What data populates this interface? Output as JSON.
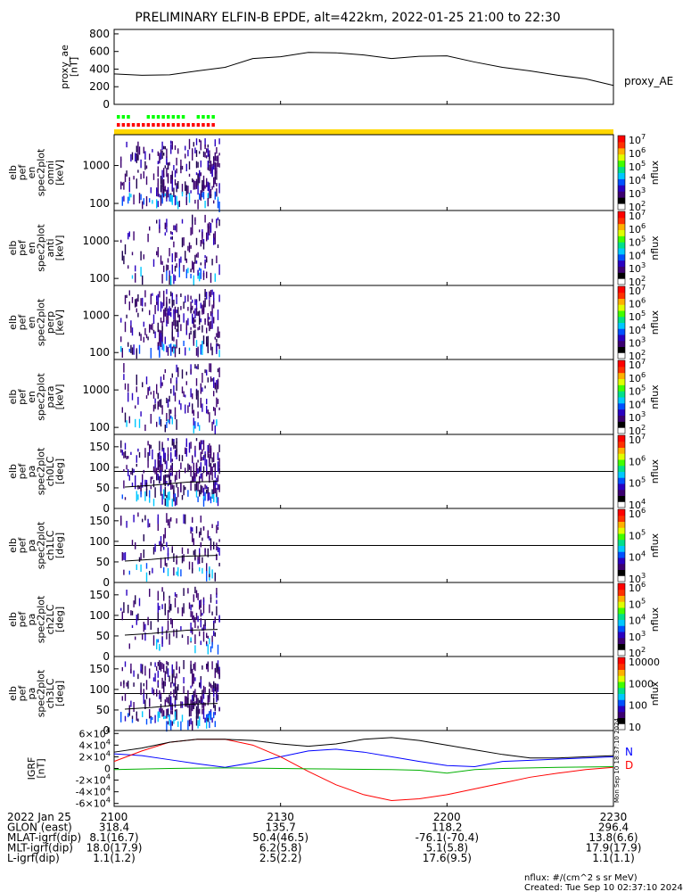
{
  "title": "PRELIMINARY ELFIN-B EPDE, alt=422km, 2022-01-25 21:00 to 22:30",
  "chart_data": [
    {
      "type": "line",
      "panel": "proxy_ae",
      "ylabel_lines": [
        "proxy_ae",
        "[nT]"
      ],
      "ylim": [
        0,
        850
      ],
      "yticks": [
        0,
        200,
        400,
        600,
        800
      ],
      "legend": "proxy_AE",
      "x_minutes": [
        0,
        5,
        10,
        15,
        20,
        25,
        30,
        35,
        40,
        45,
        50,
        55,
        60,
        65,
        70,
        75,
        80,
        85,
        90
      ],
      "values": [
        345,
        330,
        335,
        380,
        420,
        520,
        540,
        590,
        585,
        560,
        520,
        545,
        550,
        480,
        420,
        380,
        330,
        290,
        215
      ]
    },
    {
      "type": "heatmap",
      "panel": "omni",
      "ylabel_lines": [
        "elb",
        "pef",
        "en",
        "spec2plot",
        "omni",
        "[keV]"
      ],
      "yscale": "log",
      "yticks": [
        "100",
        "1000"
      ],
      "colorbar": {
        "label": "nflux",
        "scale": "log",
        "ticks": [
          "10^2",
          "10^3",
          "10^4",
          "10^5",
          "10^6",
          "10^7"
        ]
      }
    },
    {
      "type": "heatmap",
      "panel": "anti",
      "ylabel_lines": [
        "elb",
        "pef",
        "en",
        "spec2plot",
        "anti",
        "[keV]"
      ],
      "yscale": "log",
      "yticks": [
        "100",
        "1000"
      ],
      "colorbar": {
        "label": "nflux",
        "scale": "log",
        "ticks": [
          "10^2",
          "10^3",
          "10^4",
          "10^5",
          "10^6",
          "10^7"
        ]
      }
    },
    {
      "type": "heatmap",
      "panel": "perp",
      "ylabel_lines": [
        "elb",
        "pef",
        "en",
        "spec2plot",
        "perp",
        "[keV]"
      ],
      "yscale": "log",
      "yticks": [
        "100",
        "1000"
      ],
      "colorbar": {
        "label": "nflux",
        "scale": "log",
        "ticks": [
          "10^2",
          "10^3",
          "10^4",
          "10^5",
          "10^6",
          "10^7"
        ]
      }
    },
    {
      "type": "heatmap",
      "panel": "para",
      "ylabel_lines": [
        "elb",
        "pef",
        "en",
        "spec2plot",
        "para",
        "[keV]"
      ],
      "yscale": "log",
      "yticks": [
        "100",
        "1000"
      ],
      "colorbar": {
        "label": "nflux",
        "scale": "log",
        "ticks": [
          "10^2",
          "10^3",
          "10^4",
          "10^5",
          "10^6",
          "10^7"
        ]
      }
    },
    {
      "type": "heatmap",
      "panel": "ch0LC",
      "ylabel_lines": [
        "elb",
        "pef",
        "pa",
        "spec2plot",
        "ch0LC",
        "[deg]"
      ],
      "ylim": [
        0,
        180
      ],
      "yticks": [
        0,
        50,
        100,
        150
      ],
      "colorbar": {
        "label": "nflux",
        "scale": "log",
        "ticks": [
          "10^4",
          "10^5",
          "10^6",
          "10^7"
        ]
      }
    },
    {
      "type": "heatmap",
      "panel": "ch1LC",
      "ylabel_lines": [
        "elb",
        "pef",
        "pa",
        "spec2plot",
        "ch1LC",
        "[deg]"
      ],
      "ylim": [
        0,
        180
      ],
      "yticks": [
        0,
        50,
        100,
        150
      ],
      "colorbar": {
        "label": "nflux",
        "scale": "log",
        "ticks": [
          "10^3",
          "10^4",
          "10^5",
          "10^6"
        ]
      }
    },
    {
      "type": "heatmap",
      "panel": "ch2LC",
      "ylabel_lines": [
        "elb",
        "pef",
        "pa",
        "spec2plot",
        "ch2LC",
        "[deg]"
      ],
      "ylim": [
        0,
        180
      ],
      "yticks": [
        0,
        50,
        100,
        150
      ],
      "colorbar": {
        "label": "nflux",
        "scale": "log",
        "ticks": [
          "10^2",
          "10^3",
          "10^4",
          "10^5",
          "10^6"
        ]
      }
    },
    {
      "type": "heatmap",
      "panel": "ch3LC",
      "ylabel_lines": [
        "elb",
        "pef",
        "pa",
        "spec2plot",
        "ch3LC",
        "[deg]"
      ],
      "ylim": [
        0,
        180
      ],
      "yticks": [
        0,
        50,
        100,
        150
      ],
      "colorbar": {
        "label": "nflux",
        "scale": "log",
        "ticks": [
          "10",
          "100",
          "1000",
          "10000"
        ]
      }
    },
    {
      "type": "line",
      "panel": "IGRF",
      "ylabel_lines": [
        "IGRF",
        "[nT]"
      ],
      "ylim": [
        -65000,
        65000
      ],
      "yticks": [
        "-6x10^4",
        "-4x10^4",
        "-2x10^4",
        "0",
        "2x10^4",
        "4x10^4",
        "6x10^4"
      ],
      "x_minutes": [
        0,
        5,
        10,
        15,
        20,
        25,
        30,
        35,
        40,
        45,
        50,
        55,
        60,
        65,
        70,
        75,
        80,
        85,
        90
      ],
      "series": [
        {
          "name": "N",
          "color": "#0000ff",
          "values": [
            25000,
            22000,
            15000,
            8000,
            2000,
            10000,
            20000,
            30000,
            33000,
            28000,
            20000,
            12000,
            5000,
            3000,
            12000,
            14000,
            16000,
            18000,
            20000
          ]
        },
        {
          "name": "D",
          "color": "#ff0000",
          "values": [
            12000,
            30000,
            45000,
            50000,
            50000,
            40000,
            20000,
            -5000,
            -28000,
            -45000,
            -55000,
            -52000,
            -45000,
            -35000,
            -25000,
            -15000,
            -8000,
            -2000,
            2000
          ]
        },
        {
          "name": "",
          "color": "#00b000",
          "values": [
            -2000,
            -1000,
            0,
            500,
            1000,
            500,
            0,
            -500,
            -1000,
            -1500,
            -2000,
            -3000,
            -8000,
            -2000,
            0,
            1000,
            2000,
            2500,
            3000
          ]
        },
        {
          "name": "",
          "color": "#000000",
          "values": [
            28000,
            35000,
            45000,
            50000,
            50000,
            48000,
            42000,
            38000,
            42000,
            50000,
            53000,
            48000,
            40000,
            32000,
            24000,
            18000,
            18000,
            20000,
            22000
          ]
        }
      ],
      "side_text": "Mon Sep 10 18:37:10 2024"
    }
  ],
  "x_axis": {
    "ticks": [
      "2100",
      "2130",
      "2200",
      "2230"
    ],
    "rows": [
      {
        "label": "2022 Jan 25",
        "values": [
          "2100",
          "2130",
          "2200",
          "2230"
        ]
      },
      {
        "label": "GLON (east)",
        "values": [
          "318.4",
          "135.7",
          "118.2",
          "296.4"
        ]
      },
      {
        "label": "MLAT-igrf(dip)",
        "values": [
          "8.1(16.7)",
          "50.4(46.5)",
          "-76.1(-70.4)",
          "13.8(6.6)"
        ]
      },
      {
        "label": "MLT-igrf(dip)",
        "values": [
          "18.0(17.9)",
          "6.2(5.8)",
          "5.1(5.8)",
          "17.9(17.9)"
        ]
      },
      {
        "label": "L-igrf(dip)",
        "values": [
          "1.1(1.2)",
          "2.5(2.2)",
          "17.6(9.5)",
          "1.1(1.1)"
        ]
      }
    ]
  },
  "footer": {
    "units": "nflux: #/(cm^2 s sr MeV)",
    "created": "Created: Tue Sep 10 02:37:10 2024"
  },
  "colors": {
    "sci_zone_bar": "#ffd700",
    "sci_marker_top": "#00ff00",
    "sci_marker_bottom": "#ff0000"
  }
}
